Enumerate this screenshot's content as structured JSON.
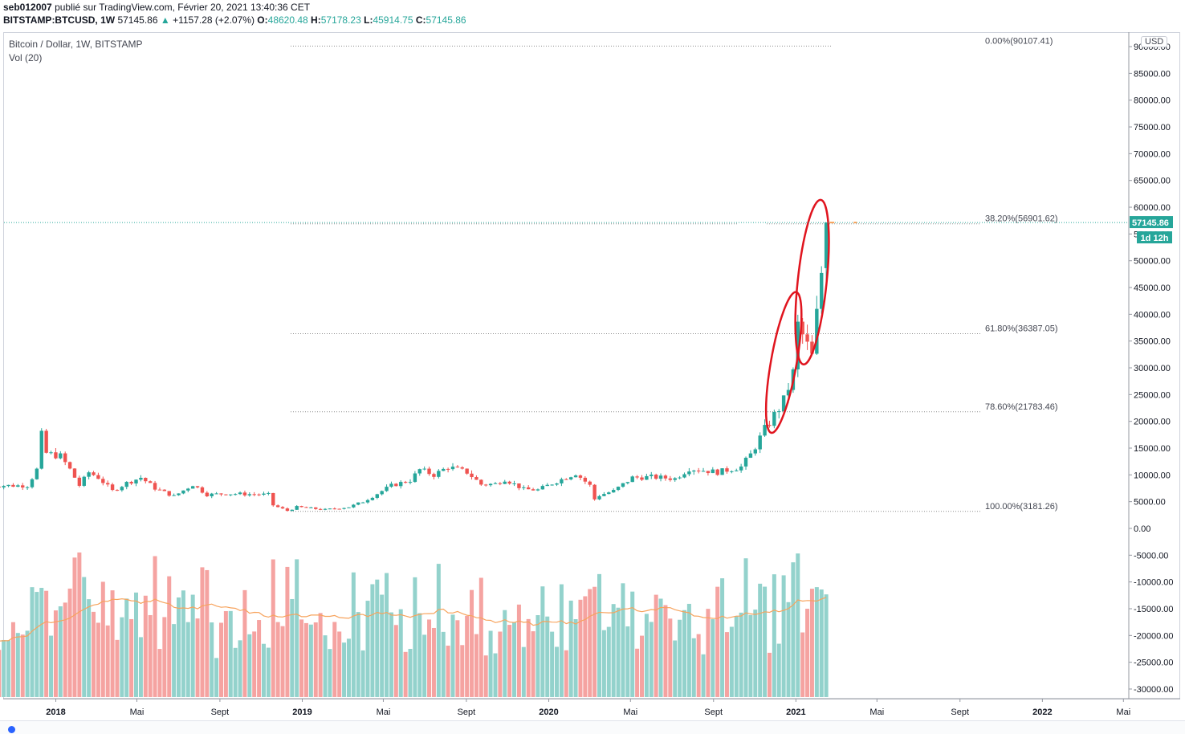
{
  "header": {
    "author": "seb012007",
    "published": "publié sur TradingView.com, Février 20, 2021 13:40:36 CET",
    "symbol": "BITSTAMP:BTCUSD, 1W",
    "last": "57145.86",
    "arrow": "▲",
    "change": "+1157.28 (+2.07%)",
    "o_label": "O:",
    "o_value": "48620.48",
    "h_label": "H:",
    "h_value": "57178.23",
    "l_label": "L:",
    "l_value": "45914.75",
    "c_label": "C:",
    "c_value": "57145.86"
  },
  "legend": {
    "title": "Bitcoin / Dollar, 1W, BITSTAMP",
    "indicator": "Vol (20)"
  },
  "price_scale": {
    "currency": "USD",
    "last_price_label": "57145.86",
    "countdown_label": "1d 12h",
    "ticks": [
      "90000.00",
      "85000.00",
      "80000.00",
      "75000.00",
      "70000.00",
      "65000.00",
      "60000.00",
      "55000.00",
      "50000.00",
      "45000.00",
      "40000.00",
      "35000.00",
      "30000.00",
      "25000.00",
      "20000.00",
      "15000.00",
      "10000.00",
      "5000.00",
      "0.00",
      "-5000.00",
      "-10000.00",
      "-15000.00",
      "-20000.00",
      "-25000.00",
      "-30000.00"
    ]
  },
  "colors": {
    "up": "#26a69a",
    "down": "#ef5350",
    "vol_up": "#93d2cc",
    "vol_down": "#f5a3a1",
    "vol_ma": "#f7a35c",
    "fib": "#8d8d8d",
    "ellipse": "#e0141e",
    "last_line": "#26a69a",
    "badge": "#26a69a"
  },
  "chart_data": {
    "type": "candlestick",
    "title": "Bitcoin / Dollar, 1W, BITSTAMP",
    "interval": "1W",
    "x_axis_labels": [
      "2018",
      "Mai",
      "Sept",
      "2019",
      "Mai",
      "Sept",
      "2020",
      "Mai",
      "Sept",
      "2021",
      "Mai",
      "Sept",
      "2022",
      "Mai"
    ],
    "y_range_price": [
      -30000,
      90000
    ],
    "fib_levels": [
      {
        "label": "0.00%(90107.41)",
        "value": 90107.41,
        "ratio": 0.0
      },
      {
        "label": "38.20%(56901.62)",
        "value": 56901.62,
        "ratio": 0.382
      },
      {
        "label": "61.80%(36387.05)",
        "value": 36387.05,
        "ratio": 0.618
      },
      {
        "label": "78.60%(21783.46)",
        "value": 21783.46,
        "ratio": 0.786
      },
      {
        "label": "100.00%(3181.26)",
        "value": 3181.26,
        "ratio": 1.0
      }
    ],
    "close_path": [
      [
        "2017-11-20",
        8000
      ],
      [
        "2017-12-04",
        11000
      ],
      [
        "2017-12-11",
        17500
      ],
      [
        "2017-12-18",
        14000
      ],
      [
        "2018-01-08",
        13500
      ],
      [
        "2018-01-22",
        11000
      ],
      [
        "2018-02-05",
        8000
      ],
      [
        "2018-02-19",
        10500
      ],
      [
        "2018-03-05",
        9500
      ],
      [
        "2018-03-26",
        7000
      ],
      [
        "2018-04-16",
        8500
      ],
      [
        "2018-05-07",
        9500
      ],
      [
        "2018-05-28",
        7500
      ],
      [
        "2018-06-25",
        6000
      ],
      [
        "2018-07-23",
        8200
      ],
      [
        "2018-08-13",
        6300
      ],
      [
        "2018-09-10",
        6500
      ],
      [
        "2018-10-15",
        6400
      ],
      [
        "2018-11-12",
        6300
      ],
      [
        "2018-11-19",
        4300
      ],
      [
        "2018-12-10",
        3300
      ],
      [
        "2018-12-24",
        4000
      ],
      [
        "2019-02-04",
        3500
      ],
      [
        "2019-03-11",
        4000
      ],
      [
        "2019-04-01",
        5000
      ],
      [
        "2019-05-13",
        8000
      ],
      [
        "2019-06-10",
        9000
      ],
      [
        "2019-06-24",
        11000
      ],
      [
        "2019-07-15",
        10000
      ],
      [
        "2019-08-05",
        11500
      ],
      [
        "2019-09-02",
        10500
      ],
      [
        "2019-09-23",
        8200
      ],
      [
        "2019-10-14",
        8300
      ],
      [
        "2019-10-28",
        9200
      ],
      [
        "2019-11-25",
        7300
      ],
      [
        "2019-12-16",
        7200
      ],
      [
        "2020-01-13",
        8800
      ],
      [
        "2020-02-10",
        10300
      ],
      [
        "2020-03-02",
        8000
      ],
      [
        "2020-03-09",
        5400
      ],
      [
        "2020-03-16",
        6200
      ],
      [
        "2020-04-06",
        7000
      ],
      [
        "2020-05-04",
        9500
      ],
      [
        "2020-06-01",
        9600
      ],
      [
        "2020-07-06",
        9300
      ],
      [
        "2020-07-27",
        11200
      ],
      [
        "2020-09-07",
        10500
      ],
      [
        "2020-10-12",
        11500
      ],
      [
        "2020-10-26",
        13800
      ],
      [
        "2020-11-16",
        18500
      ],
      [
        "2020-12-14",
        23800
      ],
      [
        "2020-12-28",
        29000
      ],
      [
        "2021-01-04",
        38000
      ],
      [
        "2021-01-25",
        32000
      ],
      [
        "2021-02-08",
        48000
      ],
      [
        "2021-02-15",
        57145.86
      ]
    ],
    "volume_ma_period": 20,
    "last": {
      "open": 48620.48,
      "high": 57178.23,
      "low": 45914.75,
      "close": 57145.86,
      "change": 1157.28,
      "change_pct": 2.07
    }
  }
}
